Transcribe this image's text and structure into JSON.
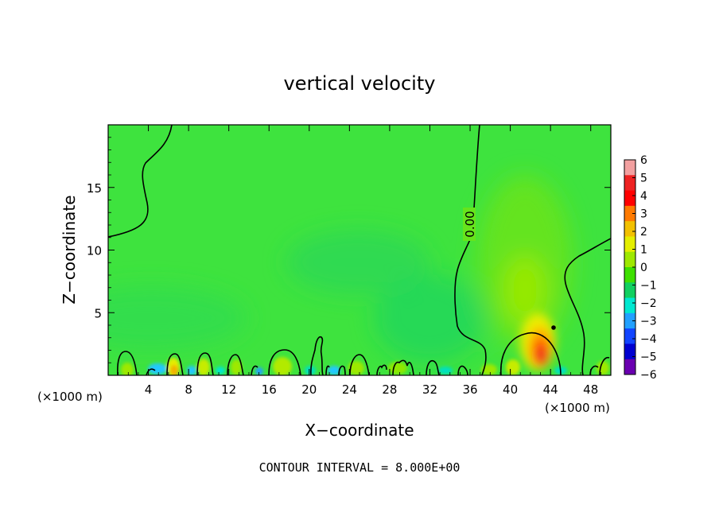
{
  "chart_data": {
    "type": "heatmap",
    "title": "vertical velocity",
    "xlabel": "X−coordinate",
    "ylabel": "Z−coordinate",
    "x_unit_left": "(×1000 m)",
    "x_unit_right": "(×1000 m)",
    "xlim": [
      0,
      50
    ],
    "ylim": [
      0,
      20
    ],
    "x_ticks": [
      4,
      8,
      12,
      16,
      20,
      24,
      28,
      32,
      36,
      40,
      44,
      48
    ],
    "y_ticks": [
      5,
      10,
      15
    ],
    "contour_label": "0.00",
    "footer": "CONTOUR INTERVAL = 8.000E+00",
    "colorbar": {
      "min": -6,
      "max": 6,
      "labels": [
        "6",
        "5",
        "4",
        "3",
        "2",
        "1",
        "0",
        "−1",
        "−2",
        "−3",
        "−4",
        "−5",
        "−6"
      ],
      "colors": [
        "#f2a0a0",
        "#ee2222",
        "#ff0000",
        "#ff7a00",
        "#f2c000",
        "#e4ee00",
        "#9ee800",
        "#3ee000",
        "#11d060",
        "#00e8d0",
        "#22a0ff",
        "#1144ff",
        "#0000d0",
        "#6a00b0"
      ]
    },
    "background_color": "#3ee33e",
    "features": [
      {
        "name": "updraft core",
        "x": 43,
        "z": 1.7,
        "value": 5
      },
      {
        "name": "updraft plume",
        "x": 41.5,
        "z": 8,
        "value": 1
      },
      {
        "name": "near-surface cells",
        "z_range": [
          0,
          2
        ],
        "value_range": [
          -3,
          3
        ]
      }
    ]
  }
}
